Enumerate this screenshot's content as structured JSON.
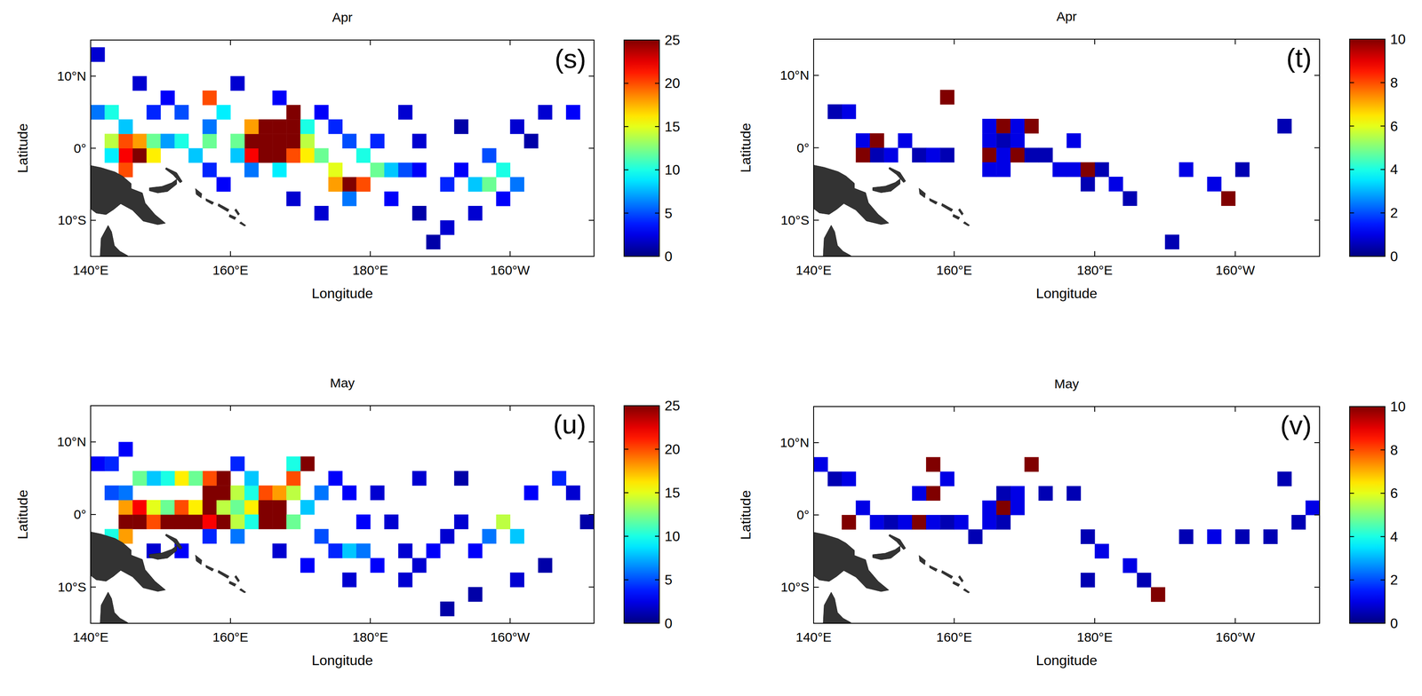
{
  "chart_data": [
    {
      "type": "heatmap",
      "title": "Apr",
      "panel_label": "(s)",
      "x_label": "Longitude",
      "y_label": "Latitude",
      "xlim": [
        140,
        212
      ],
      "ylim": [
        -15,
        15
      ],
      "xticks": [
        {
          "value": 140,
          "label": "140°E"
        },
        {
          "value": 160,
          "label": "160°E"
        },
        {
          "value": 180,
          "label": "180°E"
        },
        {
          "value": 200,
          "label": "160°W"
        }
      ],
      "yticks": [
        {
          "value": 10,
          "label": "10°N"
        },
        {
          "value": 0,
          "label": "0°"
        },
        {
          "value": -10,
          "label": "10°S"
        }
      ],
      "colorbar": {
        "range": [
          0,
          25
        ],
        "ticks": [
          0,
          5,
          10,
          15,
          20,
          25
        ]
      },
      "cells": [
        [
          162,
          -2,
          22
        ],
        [
          164,
          -2,
          25
        ],
        [
          166,
          -2,
          25
        ],
        [
          168,
          -2,
          20
        ],
        [
          162,
          0,
          25
        ],
        [
          164,
          0,
          25
        ],
        [
          166,
          0,
          25
        ],
        [
          168,
          0,
          25
        ],
        [
          164,
          2,
          25
        ],
        [
          166,
          2,
          25
        ],
        [
          168,
          2,
          25
        ],
        [
          168,
          4,
          25
        ],
        [
          162,
          2,
          18
        ],
        [
          170,
          0,
          14
        ],
        [
          170,
          2,
          10
        ],
        [
          160,
          0,
          12
        ],
        [
          160,
          -2,
          8
        ],
        [
          170,
          -2,
          16
        ],
        [
          166,
          -4,
          9
        ],
        [
          162,
          -4,
          6
        ],
        [
          142,
          0,
          14
        ],
        [
          144,
          -2,
          22
        ],
        [
          146,
          -2,
          25
        ],
        [
          146,
          0,
          18
        ],
        [
          144,
          0,
          20
        ],
        [
          148,
          0,
          12
        ],
        [
          144,
          -4,
          20
        ],
        [
          142,
          -2,
          9
        ],
        [
          140,
          4,
          6
        ],
        [
          142,
          4,
          10
        ],
        [
          144,
          2,
          8
        ],
        [
          148,
          -2,
          16
        ],
        [
          150,
          0,
          7
        ],
        [
          152,
          0,
          10
        ],
        [
          154,
          -2,
          8
        ],
        [
          156,
          0,
          12
        ],
        [
          156,
          2,
          6
        ],
        [
          158,
          4,
          9
        ],
        [
          156,
          6,
          20
        ],
        [
          152,
          4,
          5
        ],
        [
          148,
          4,
          4
        ],
        [
          150,
          6,
          3
        ],
        [
          146,
          8,
          2
        ],
        [
          140,
          12,
          2
        ],
        [
          156,
          -4,
          4
        ],
        [
          158,
          -6,
          3
        ],
        [
          172,
          -2,
          12
        ],
        [
          174,
          -4,
          15
        ],
        [
          176,
          -6,
          25
        ],
        [
          178,
          -6,
          20
        ],
        [
          174,
          -6,
          18
        ],
        [
          178,
          -2,
          10
        ],
        [
          180,
          -4,
          12
        ],
        [
          182,
          -4,
          8
        ],
        [
          176,
          0,
          5
        ],
        [
          172,
          4,
          3
        ],
        [
          180,
          0,
          4
        ],
        [
          184,
          -4,
          5
        ],
        [
          186,
          -4,
          3
        ],
        [
          176,
          -8,
          6
        ],
        [
          182,
          -8,
          3
        ],
        [
          174,
          2,
          4
        ],
        [
          190,
          -6,
          4
        ],
        [
          192,
          -4,
          3
        ],
        [
          194,
          -6,
          8
        ],
        [
          196,
          -6,
          12
        ],
        [
          198,
          -4,
          10
        ],
        [
          196,
          -2,
          5
        ],
        [
          200,
          -6,
          6
        ],
        [
          198,
          -8,
          3
        ],
        [
          194,
          -10,
          2
        ],
        [
          190,
          -12,
          2
        ],
        [
          188,
          -14,
          1
        ],
        [
          200,
          2,
          2
        ],
        [
          204,
          4,
          2
        ],
        [
          208,
          4,
          3
        ],
        [
          202,
          0,
          1
        ],
        [
          192,
          2,
          1
        ],
        [
          186,
          0,
          2
        ],
        [
          184,
          4,
          2
        ],
        [
          166,
          6,
          3
        ],
        [
          160,
          8,
          2
        ],
        [
          172,
          -10,
          2
        ],
        [
          168,
          -8,
          2
        ],
        [
          186,
          -10,
          1
        ]
      ]
    },
    {
      "type": "heatmap",
      "title": "Apr",
      "panel_label": "(t)",
      "x_label": "Longitude",
      "y_label": "Latitude",
      "xlim": [
        140,
        212
      ],
      "ylim": [
        -15,
        15
      ],
      "xticks": [
        {
          "value": 140,
          "label": "140°E"
        },
        {
          "value": 160,
          "label": "160°E"
        },
        {
          "value": 180,
          "label": "180°E"
        },
        {
          "value": 200,
          "label": "160°W"
        }
      ],
      "yticks": [
        {
          "value": 10,
          "label": "10°N"
        },
        {
          "value": 0,
          "label": "0°"
        },
        {
          "value": -10,
          "label": "10°S"
        }
      ],
      "colorbar": {
        "range": [
          0,
          10
        ],
        "ticks": [
          0,
          2,
          4,
          6,
          8,
          10
        ]
      },
      "cells": [
        [
          144,
          4,
          1
        ],
        [
          142,
          4,
          0.5
        ],
        [
          146,
          0,
          1
        ],
        [
          148,
          0,
          10
        ],
        [
          150,
          -2,
          1
        ],
        [
          148,
          -2,
          0.5
        ],
        [
          146,
          -2,
          10
        ],
        [
          152,
          0,
          1
        ],
        [
          154,
          -2,
          0.5
        ],
        [
          156,
          -2,
          1
        ],
        [
          158,
          -2,
          0.5
        ],
        [
          164,
          2,
          1
        ],
        [
          166,
          2,
          10
        ],
        [
          168,
          2,
          1
        ],
        [
          170,
          2,
          10
        ],
        [
          164,
          0,
          1
        ],
        [
          166,
          0,
          0.5
        ],
        [
          168,
          0,
          1
        ],
        [
          164,
          -2,
          10
        ],
        [
          166,
          -2,
          1
        ],
        [
          168,
          -2,
          10
        ],
        [
          170,
          -2,
          0.5
        ],
        [
          164,
          -4,
          1
        ],
        [
          166,
          -4,
          1
        ],
        [
          172,
          -2,
          0.5
        ],
        [
          174,
          -4,
          1
        ],
        [
          176,
          -4,
          1
        ],
        [
          178,
          -6,
          0.5
        ],
        [
          180,
          -4,
          0.5
        ],
        [
          182,
          -6,
          1
        ],
        [
          184,
          -8,
          0.5
        ],
        [
          192,
          -4,
          1
        ],
        [
          196,
          -6,
          1
        ],
        [
          198,
          -8,
          10
        ],
        [
          200,
          -4,
          0.5
        ],
        [
          158,
          6,
          10
        ],
        [
          206,
          2,
          0.5
        ],
        [
          190,
          -14,
          0.5
        ],
        [
          176,
          0,
          1
        ],
        [
          178,
          -4,
          10
        ]
      ]
    },
    {
      "type": "heatmap",
      "title": "May",
      "panel_label": "(u)",
      "x_label": "Longitude",
      "y_label": "Latitude",
      "xlim": [
        140,
        212
      ],
      "ylim": [
        -15,
        15
      ],
      "xticks": [
        {
          "value": 140,
          "label": "140°E"
        },
        {
          "value": 160,
          "label": "160°E"
        },
        {
          "value": 180,
          "label": "180°E"
        },
        {
          "value": 200,
          "label": "160°W"
        }
      ],
      "yticks": [
        {
          "value": 10,
          "label": "10°N"
        },
        {
          "value": 0,
          "label": "0°"
        },
        {
          "value": -10,
          "label": "10°S"
        }
      ],
      "colorbar": {
        "range": [
          0,
          25
        ],
        "ticks": [
          0,
          5,
          10,
          15,
          20,
          25
        ]
      },
      "cells": [
        [
          144,
          -2,
          25
        ],
        [
          146,
          -2,
          25
        ],
        [
          148,
          -2,
          20
        ],
        [
          150,
          -2,
          25
        ],
        [
          152,
          -2,
          25
        ],
        [
          154,
          -2,
          25
        ],
        [
          156,
          -2,
          22
        ],
        [
          158,
          -2,
          25
        ],
        [
          144,
          0,
          18
        ],
        [
          146,
          0,
          22
        ],
        [
          148,
          0,
          15
        ],
        [
          150,
          0,
          12
        ],
        [
          152,
          0,
          20
        ],
        [
          154,
          0,
          16
        ],
        [
          156,
          0,
          25
        ],
        [
          158,
          0,
          14
        ],
        [
          156,
          2,
          25
        ],
        [
          158,
          2,
          25
        ],
        [
          158,
          4,
          25
        ],
        [
          156,
          4,
          20
        ],
        [
          154,
          4,
          12
        ],
        [
          152,
          4,
          16
        ],
        [
          150,
          4,
          10
        ],
        [
          148,
          4,
          8
        ],
        [
          146,
          4,
          12
        ],
        [
          144,
          2,
          6
        ],
        [
          142,
          2,
          5
        ],
        [
          140,
          6,
          3
        ],
        [
          142,
          6,
          4
        ],
        [
          144,
          8,
          3
        ],
        [
          160,
          2,
          14
        ],
        [
          160,
          0,
          12
        ],
        [
          162,
          0,
          16
        ],
        [
          164,
          0,
          25
        ],
        [
          166,
          0,
          25
        ],
        [
          164,
          -2,
          25
        ],
        [
          166,
          -2,
          25
        ],
        [
          164,
          2,
          20
        ],
        [
          166,
          2,
          18
        ],
        [
          162,
          2,
          10
        ],
        [
          168,
          2,
          14
        ],
        [
          168,
          4,
          20
        ],
        [
          170,
          6,
          25
        ],
        [
          168,
          6,
          10
        ],
        [
          162,
          4,
          8
        ],
        [
          160,
          6,
          4
        ],
        [
          170,
          0,
          8
        ],
        [
          168,
          -2,
          12
        ],
        [
          162,
          -2,
          10
        ],
        [
          160,
          -2,
          14
        ],
        [
          160,
          -4,
          6
        ],
        [
          156,
          -4,
          4
        ],
        [
          152,
          -6,
          3
        ],
        [
          148,
          -6,
          2
        ],
        [
          142,
          -4,
          10
        ],
        [
          144,
          -4,
          18
        ],
        [
          172,
          -4,
          5
        ],
        [
          174,
          -6,
          4
        ],
        [
          176,
          -6,
          8
        ],
        [
          178,
          -6,
          6
        ],
        [
          180,
          -8,
          3
        ],
        [
          184,
          -6,
          2
        ],
        [
          186,
          -8,
          2
        ],
        [
          188,
          -6,
          3
        ],
        [
          190,
          -4,
          2
        ],
        [
          178,
          -2,
          3
        ],
        [
          182,
          -2,
          2
        ],
        [
          176,
          2,
          3
        ],
        [
          180,
          2,
          2
        ],
        [
          196,
          -4,
          6
        ],
        [
          198,
          -2,
          14
        ],
        [
          200,
          -4,
          8
        ],
        [
          194,
          -6,
          3
        ],
        [
          192,
          -2,
          2
        ],
        [
          202,
          2,
          3
        ],
        [
          206,
          4,
          4
        ],
        [
          208,
          2,
          2
        ],
        [
          200,
          -10,
          2
        ],
        [
          194,
          -12,
          1
        ],
        [
          190,
          -14,
          1
        ],
        [
          184,
          -10,
          2
        ],
        [
          176,
          -10,
          2
        ],
        [
          170,
          -8,
          3
        ],
        [
          166,
          -6,
          2
        ],
        [
          172,
          2,
          6
        ],
        [
          174,
          4,
          3
        ],
        [
          186,
          4,
          2
        ],
        [
          192,
          4,
          1
        ],
        [
          210,
          -2,
          1
        ],
        [
          204,
          -8,
          1
        ]
      ]
    },
    {
      "type": "heatmap",
      "title": "May",
      "panel_label": "(v)",
      "x_label": "Longitude",
      "y_label": "Latitude",
      "xlim": [
        140,
        212
      ],
      "ylim": [
        -15,
        15
      ],
      "xticks": [
        {
          "value": 140,
          "label": "140°E"
        },
        {
          "value": 160,
          "label": "160°E"
        },
        {
          "value": 180,
          "label": "180°E"
        },
        {
          "value": 200,
          "label": "160°W"
        }
      ],
      "yticks": [
        {
          "value": 10,
          "label": "10°N"
        },
        {
          "value": 0,
          "label": "0°"
        },
        {
          "value": -10,
          "label": "10°S"
        }
      ],
      "colorbar": {
        "range": [
          0,
          10
        ],
        "ticks": [
          0,
          2,
          4,
          6,
          8,
          10
        ]
      },
      "cells": [
        [
          140,
          6,
          1
        ],
        [
          142,
          4,
          0.5
        ],
        [
          144,
          4,
          1
        ],
        [
          146,
          0,
          1
        ],
        [
          144,
          -2,
          10
        ],
        [
          148,
          -2,
          1
        ],
        [
          150,
          -2,
          0.5
        ],
        [
          152,
          -2,
          1
        ],
        [
          154,
          -2,
          10
        ],
        [
          156,
          -2,
          1
        ],
        [
          158,
          -2,
          0.5
        ],
        [
          160,
          -2,
          1
        ],
        [
          156,
          2,
          10
        ],
        [
          154,
          2,
          1
        ],
        [
          158,
          4,
          1
        ],
        [
          156,
          6,
          10
        ],
        [
          164,
          0,
          1
        ],
        [
          166,
          0,
          10
        ],
        [
          168,
          0,
          1
        ],
        [
          164,
          -2,
          1
        ],
        [
          166,
          -2,
          0.5
        ],
        [
          168,
          2,
          1
        ],
        [
          166,
          2,
          0.5
        ],
        [
          162,
          -4,
          0.5
        ],
        [
          170,
          6,
          10
        ],
        [
          172,
          2,
          0.5
        ],
        [
          176,
          2,
          0.5
        ],
        [
          178,
          -4,
          0.5
        ],
        [
          180,
          -6,
          1
        ],
        [
          186,
          -10,
          0.5
        ],
        [
          184,
          -8,
          1
        ],
        [
          192,
          -4,
          0.5
        ],
        [
          196,
          -4,
          1
        ],
        [
          200,
          -4,
          0.5
        ],
        [
          204,
          -4,
          0.5
        ],
        [
          208,
          -2,
          0.5
        ],
        [
          210,
          0,
          1
        ],
        [
          206,
          4,
          0.5
        ],
        [
          188,
          -12,
          10
        ],
        [
          178,
          -10,
          0.5
        ]
      ]
    }
  ]
}
